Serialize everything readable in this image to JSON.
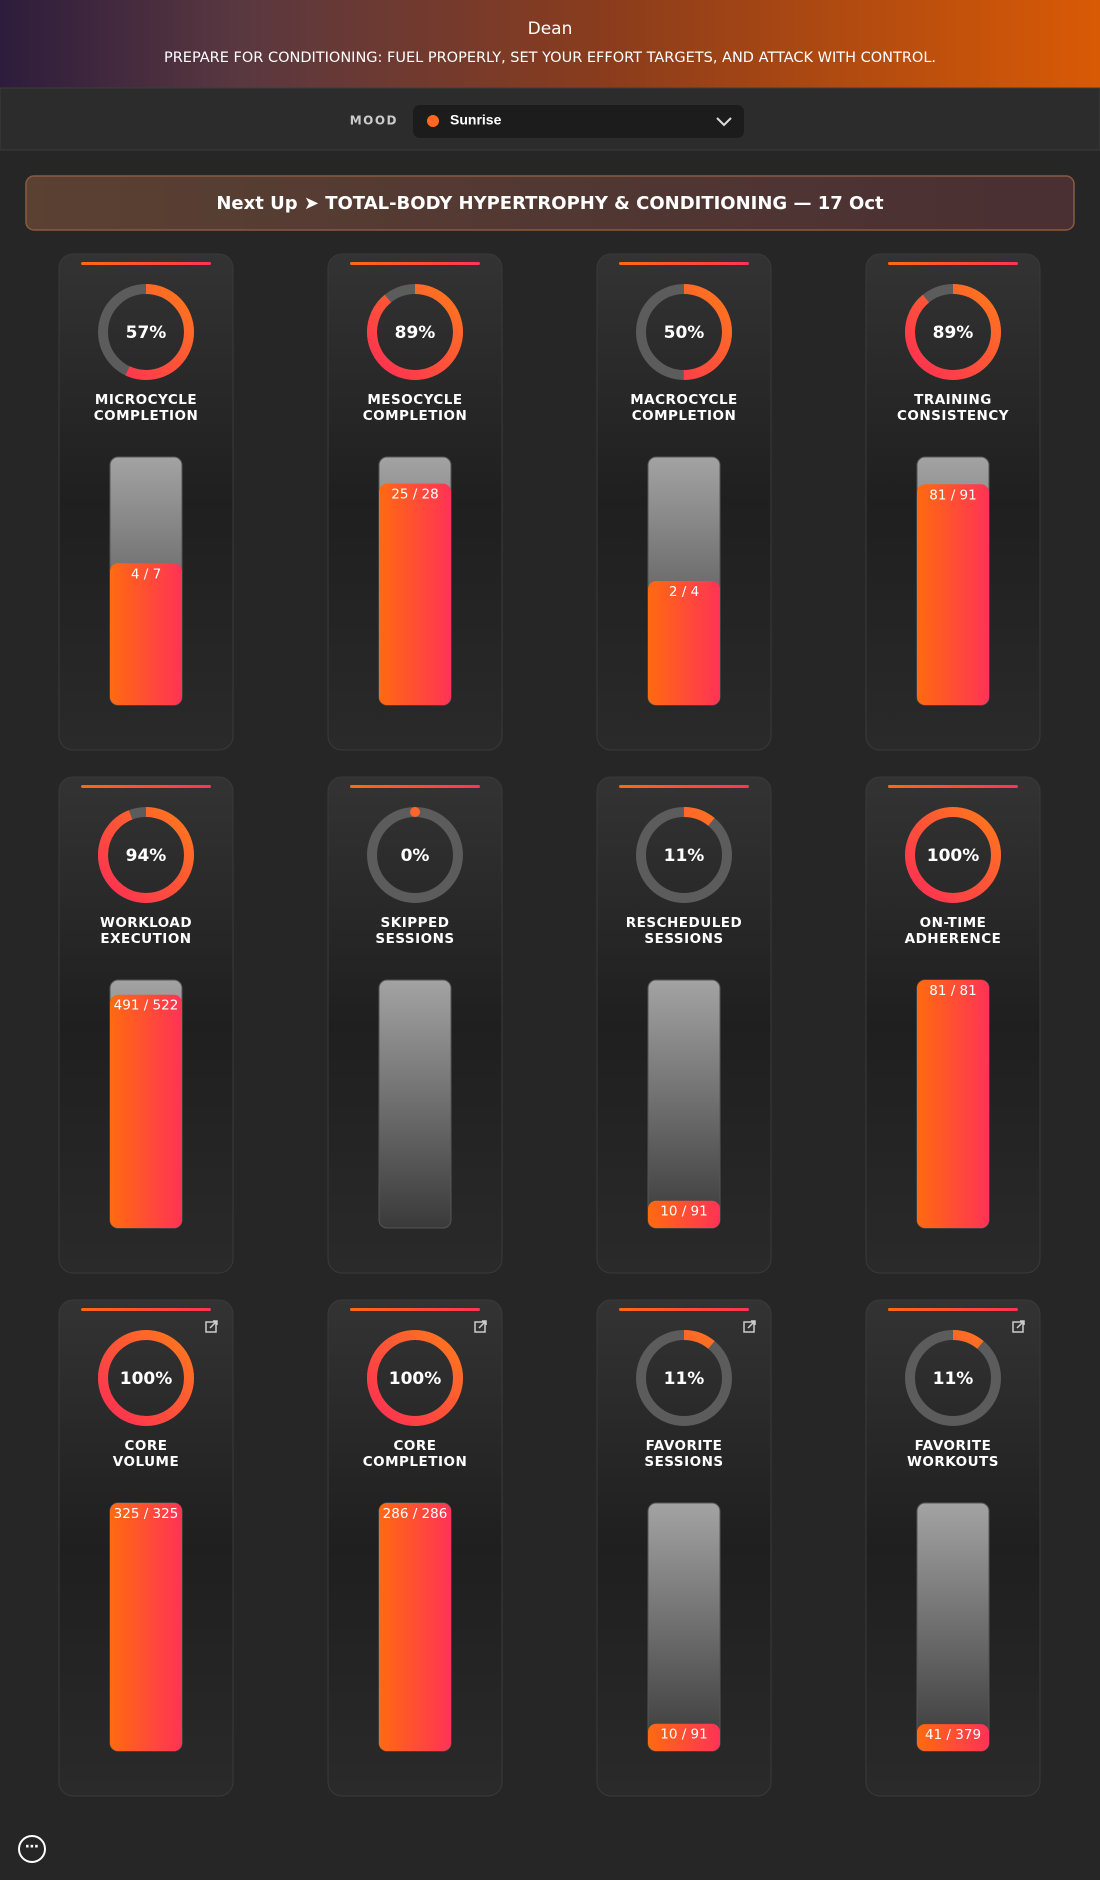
{
  "header": {
    "title": "Dean",
    "subtitle": "PREPARE FOR CONDITIONING: FUEL PROPERLY, SET YOUR EFFORT TARGETS, AND ATTACK WITH CONTROL."
  },
  "mood": {
    "label": "MOOD",
    "value": "Sunrise"
  },
  "next_up": "Next Up ➤ TOTAL-BODY HYPERTROPHY & CONDITIONING — 17 Oct",
  "cards": [
    {
      "label_lines": [
        "MICROCYCLE",
        "COMPLETION"
      ],
      "percent": 57,
      "percent_label": "57%",
      "done": 4,
      "total": 7,
      "fraction_label": "4 / 7",
      "link": false
    },
    {
      "label_lines": [
        "MESOCYCLE",
        "COMPLETION"
      ],
      "percent": 89,
      "percent_label": "89%",
      "done": 25,
      "total": 28,
      "fraction_label": "25 / 28",
      "link": false
    },
    {
      "label_lines": [
        "MACROCYCLE",
        "COMPLETION"
      ],
      "percent": 50,
      "percent_label": "50%",
      "done": 2,
      "total": 4,
      "fraction_label": "2 / 4",
      "link": false
    },
    {
      "label_lines": [
        "TRAINING",
        "CONSISTENCY"
      ],
      "percent": 89,
      "percent_label": "89%",
      "done": 81,
      "total": 91,
      "fraction_label": "81 / 91",
      "link": false
    },
    {
      "label_lines": [
        "WORKLOAD",
        "EXECUTION"
      ],
      "percent": 94,
      "percent_label": "94%",
      "done": 491,
      "total": 522,
      "fraction_label": "491 / 522",
      "link": false
    },
    {
      "label_lines": [
        "SKIPPED",
        "SESSIONS"
      ],
      "percent": 0,
      "percent_label": "0%",
      "link": false
    },
    {
      "label_lines": [
        "RESCHEDULED",
        "SESSIONS"
      ],
      "percent": 11,
      "percent_label": "11%",
      "done": 10,
      "total": 91,
      "fraction_label": "10 / 91",
      "link": false
    },
    {
      "label_lines": [
        "ON-TIME",
        "ADHERENCE"
      ],
      "percent": 100,
      "percent_label": "100%",
      "done": 81,
      "total": 81,
      "fraction_label": "81 / 81",
      "link": false
    },
    {
      "label_lines": [
        "CORE",
        "VOLUME"
      ],
      "percent": 100,
      "percent_label": "100%",
      "done": 325,
      "total": 325,
      "fraction_label": "325 / 325",
      "link": true
    },
    {
      "label_lines": [
        "CORE",
        "COMPLETION"
      ],
      "percent": 100,
      "percent_label": "100%",
      "done": 286,
      "total": 286,
      "fraction_label": "286 / 286",
      "link": true
    },
    {
      "label_lines": [
        "FAVORITE",
        "SESSIONS"
      ],
      "percent": 11,
      "percent_label": "11%",
      "done": 10,
      "total": 91,
      "fraction_label": "10 / 91",
      "link": true
    },
    {
      "label_lines": [
        "FAVORITE",
        "WORKOUTS"
      ],
      "percent": 11,
      "percent_label": "11%",
      "done": 41,
      "total": 379,
      "fraction_label": "41 / 379",
      "link": true
    }
  ]
}
